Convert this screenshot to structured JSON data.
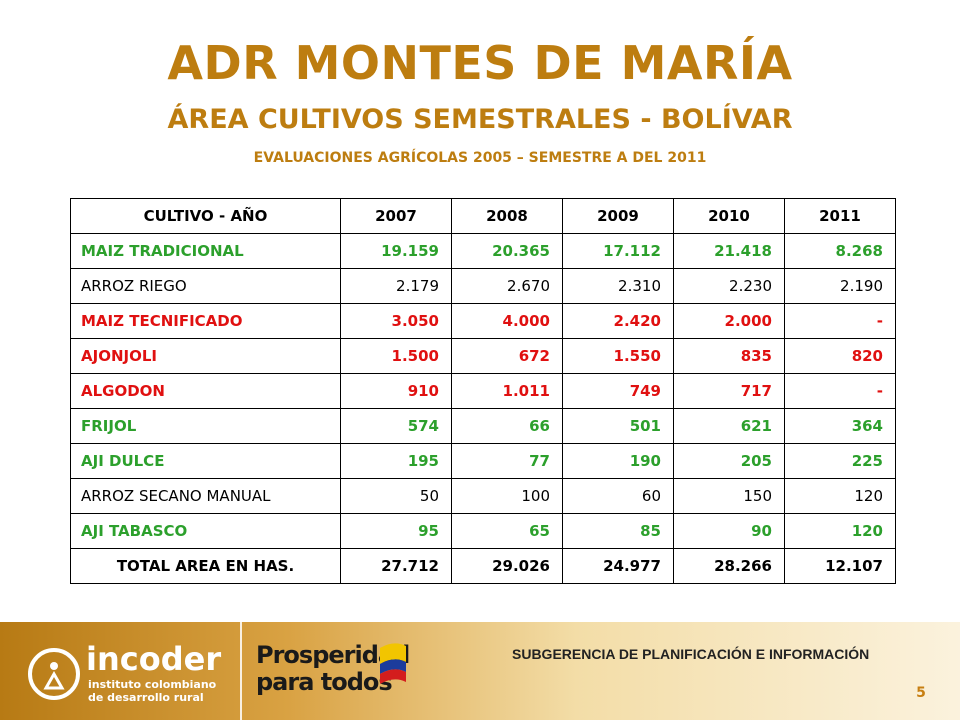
{
  "title": "ADR MONTES DE MARÍA",
  "subtitle": "ÁREA CULTIVOS SEMESTRALES - BOLÍVAR",
  "subtitle2": "EVALUACIONES AGRÍCOLAS 2005 – SEMESTRE A DEL 2011",
  "table": {
    "header": [
      "CULTIVO  - AÑO",
      "2007",
      "2008",
      "2009",
      "2010",
      "2011"
    ],
    "rows": [
      {
        "name": "MAIZ TRADICIONAL",
        "values": [
          "19.159",
          "20.365",
          "17.112",
          "21.418",
          "8.268"
        ],
        "color": "green"
      },
      {
        "name": "ARROZ RIEGO",
        "values": [
          "2.179",
          "2.670",
          "2.310",
          "2.230",
          "2.190"
        ],
        "color": "black"
      },
      {
        "name": "MAIZ TECNIFICADO",
        "values": [
          "3.050",
          "4.000",
          "2.420",
          "2.000",
          "-"
        ],
        "color": "red"
      },
      {
        "name": "AJONJOLI",
        "values": [
          "1.500",
          "672",
          "1.550",
          "835",
          "820"
        ],
        "color": "red"
      },
      {
        "name": "ALGODON",
        "values": [
          "910",
          "1.011",
          "749",
          "717",
          "-"
        ],
        "color": "red"
      },
      {
        "name": "FRIJOL",
        "values": [
          "574",
          "66",
          "501",
          "621",
          "364"
        ],
        "color": "green"
      },
      {
        "name": "AJI DULCE",
        "values": [
          "195",
          "77",
          "190",
          "205",
          "225"
        ],
        "color": "green"
      },
      {
        "name": "ARROZ SECANO MANUAL",
        "values": [
          "50",
          "100",
          "60",
          "150",
          "120"
        ],
        "color": "black"
      },
      {
        "name": "AJI TABASCO",
        "values": [
          "95",
          "65",
          "85",
          "90",
          "120"
        ],
        "color": "green"
      }
    ],
    "total": {
      "name": "TOTAL AREA EN HAS.",
      "values": [
        "27.712",
        "29.026",
        "24.977",
        "28.266",
        "12.107"
      ]
    }
  },
  "footer": {
    "logo_name": "incoder",
    "logo_sub_line1": "instituto colombiano",
    "logo_sub_line2": "de desarrollo rural",
    "slogan_line1": "Prosperidad",
    "slogan_line2": "para todos",
    "department": "SUBGERENCIA DE PLANIFICACIÓN E INFORMACIÓN",
    "page_number": "5"
  },
  "colors": {
    "title": "#bd7d10",
    "green": "#2ca02c",
    "red": "#e01010"
  }
}
